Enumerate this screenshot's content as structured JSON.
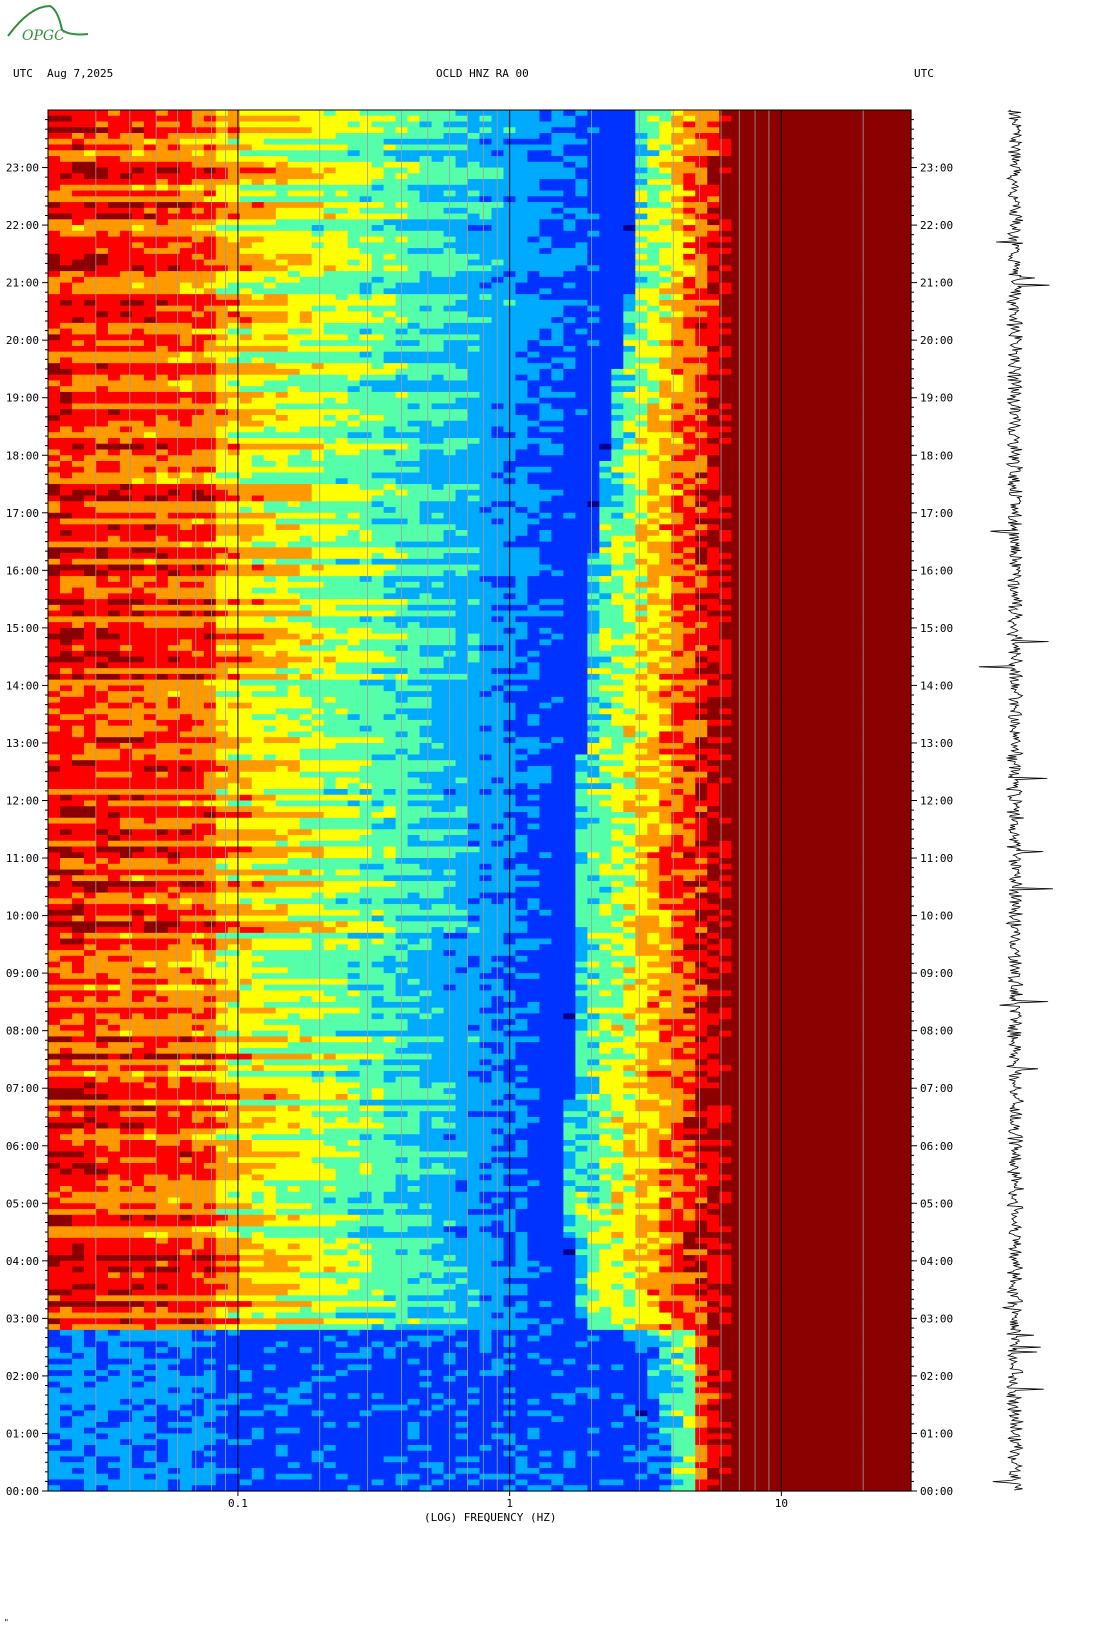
{
  "header": {
    "left_tz": "UTC",
    "date": "Aug 7,2025",
    "station": "OCLD HNZ RA 00",
    "right_tz": "UTC"
  },
  "logo": {
    "text": "OPGC"
  },
  "footer_mark": "\"",
  "chart_data": {
    "type": "heatmap",
    "title": "OCLD HNZ RA 00",
    "xlabel": "(LOG) FREQUENCY (HZ)",
    "ylabel": "",
    "x_scale": "log",
    "xlim": [
      0.02,
      30
    ],
    "x_tick_labels": [
      "0.1",
      "1",
      "10"
    ],
    "x_ticks": [
      0.1,
      1,
      10
    ],
    "y_tick_labels": [
      "00:00",
      "01:00",
      "02:00",
      "03:00",
      "04:00",
      "05:00",
      "06:00",
      "07:00",
      "08:00",
      "09:00",
      "10:00",
      "11:00",
      "12:00",
      "13:00",
      "14:00",
      "15:00",
      "16:00",
      "17:00",
      "18:00",
      "19:00",
      "20:00",
      "21:00",
      "22:00",
      "23:00"
    ],
    "ylim_hours": [
      0,
      24
    ],
    "colormap": [
      "#00008b",
      "#0033ff",
      "#00aaff",
      "#55ffaa",
      "#ffff00",
      "#ff9900",
      "#ff0000",
      "#8b0000"
    ],
    "noise_boundary_hz": [
      {
        "hour": 0,
        "hz": 3.0
      },
      {
        "hour": 2.5,
        "hz": 2.6
      },
      {
        "hour": 3,
        "hz": 1.8
      },
      {
        "hour": 5,
        "hz": 1.6
      },
      {
        "hour": 8,
        "hz": 1.7
      },
      {
        "hour": 12,
        "hz": 1.8
      },
      {
        "hour": 16,
        "hz": 2.0
      },
      {
        "hour": 19,
        "hz": 2.4
      },
      {
        "hour": 21,
        "hz": 2.8
      },
      {
        "hour": 24,
        "hz": 3.0
      }
    ]
  }
}
